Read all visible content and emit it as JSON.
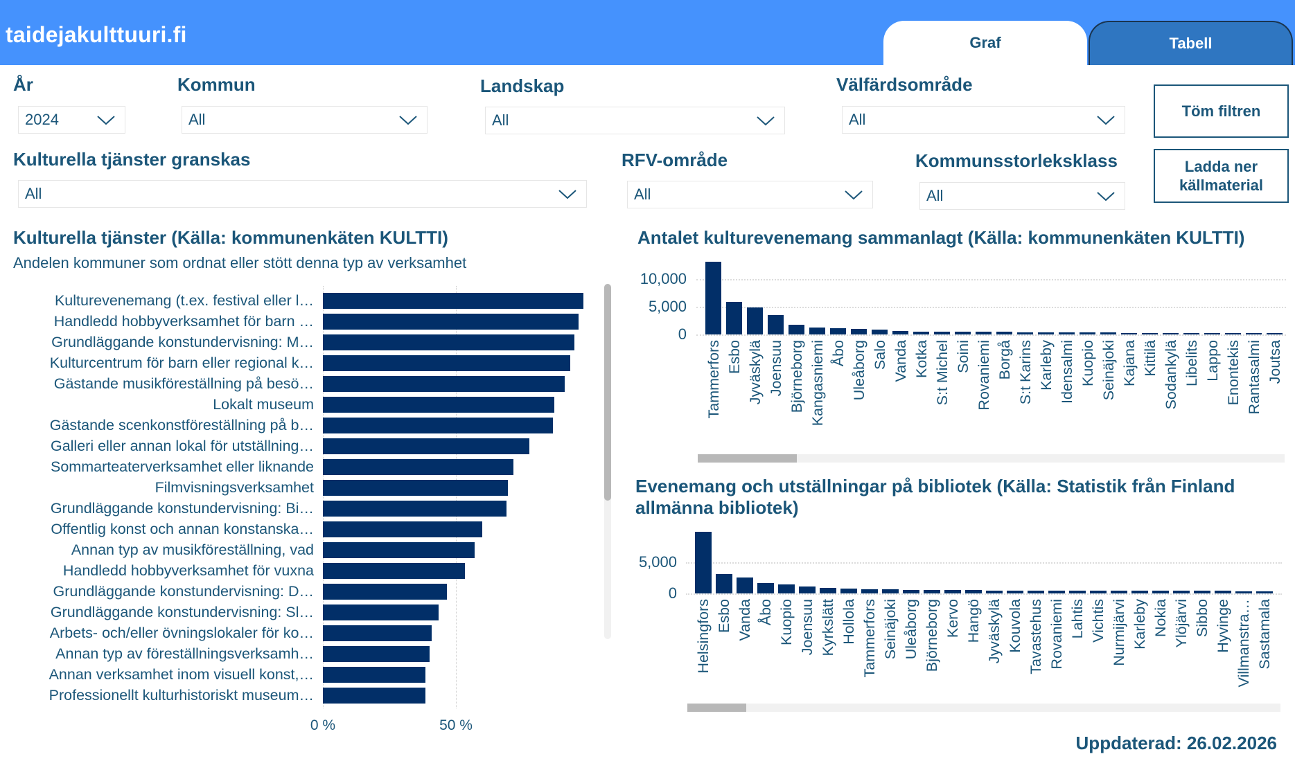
{
  "header": {
    "site_title": "taidejakulttuuri.fi",
    "tabs": [
      {
        "label": "Graf",
        "active": true
      },
      {
        "label": "Tabell",
        "active": false
      }
    ]
  },
  "filters": {
    "year": {
      "label": "År",
      "value": "2024"
    },
    "kommun": {
      "label": "Kommun",
      "value": "All"
    },
    "landskap": {
      "label": "Landskap",
      "value": "All"
    },
    "valfardsomrade": {
      "label": "Välfärdsområde",
      "value": "All"
    },
    "kulturella_tjanster": {
      "label": "Kulturella tjänster granskas",
      "value": "All"
    },
    "rfv": {
      "label": "RFV-område",
      "value": "All"
    },
    "kommunstorlek": {
      "label": "Kommunsstorleksklass",
      "value": "All"
    }
  },
  "buttons": {
    "clear_filters": "Töm filtren",
    "download_line1": "Ladda ner",
    "download_line2": "källmaterial"
  },
  "updated": "Uppdaterad: 26.02.2026",
  "colors": {
    "header": "#4592FD",
    "tab_inactive": "#2F76C1",
    "text": "#1B5679",
    "bar": "#022F68"
  },
  "chart_data": [
    {
      "type": "bar",
      "orientation": "horizontal",
      "title": "Kulturella tjänster (Källa: kommunenkäten KULTTI)",
      "subtitle": "Andelen kommuner som ordnat eller stött denna typ av verksamhet",
      "xlabel": "",
      "ylabel": "",
      "xlim": [
        0,
        100
      ],
      "x_ticks": [
        "0 %",
        "50 %"
      ],
      "x_tick_values": [
        0,
        50
      ],
      "grid": true,
      "categories": [
        "Kulturevenemang (t.ex. festival eller l…",
        "Handledd hobbyverksamhet för barn …",
        "Grundläggande konstundervisning: M…",
        "Kulturcentrum för barn eller regional k…",
        "Gästande musikföreställning på besö…",
        "Lokalt museum",
        "Gästande scenkonstföreställning på b…",
        "Galleri eller annan lokal för utställning…",
        "Sommarteaterverksamhet eller liknande",
        "Filmvisningsverksamhet",
        "Grundläggande konstundervisning: Bi…",
        "Offentlig konst och annan konstanska…",
        "Annan typ av musikföreställning, vad",
        "Handledd hobbyverksamhet för vuxna",
        "Grundläggande konstundervisning: D…",
        "Grundläggande konstundervisning: Sl…",
        "Arbets- och/eller övningslokaler för ko…",
        "Annan typ av föreställningsverksamh…",
        "Annan verksamhet inom visuell konst,…",
        "Professionellt kulturhistoriskt museum…"
      ],
      "values": [
        98,
        96,
        94.5,
        93,
        91,
        87,
        86.5,
        77.5,
        71.5,
        69.5,
        69,
        60,
        57,
        53.5,
        46.5,
        43.5,
        41,
        40,
        38.5,
        38.5
      ],
      "unit": "%"
    },
    {
      "type": "bar",
      "title": "Antalet kulturevenemang sammanlagt (Källa: kommunenkäten KULTTI)",
      "xlabel": "",
      "ylabel": "",
      "ylim": [
        0,
        13500
      ],
      "y_ticks": [
        "0",
        "5,000",
        "10,000"
      ],
      "y_tick_values": [
        0,
        5000,
        10000
      ],
      "grid": true,
      "categories": [
        "Tammerfors",
        "Esbo",
        "Jyväskylä",
        "Joensuu",
        "Björneborg",
        "Kangasniemi",
        "Åbo",
        "Uleåborg",
        "Salo",
        "Vanda",
        "Kotka",
        "S:t Michel",
        "Soini",
        "Rovaniemi",
        "Borgå",
        "S:t Karins",
        "Karleby",
        "Idensalmi",
        "Kuopio",
        "Seinäjoki",
        "Kajana",
        "Kittilä",
        "Sodankylä",
        "Libelits",
        "Lappo",
        "Enontekis",
        "Rantasalmi",
        "Joutsa"
      ],
      "values": [
        13150,
        5850,
        4900,
        3450,
        1800,
        1200,
        1120,
        980,
        890,
        600,
        560,
        520,
        480,
        470,
        460,
        430,
        420,
        390,
        380,
        320,
        300,
        260,
        240,
        230,
        220,
        210,
        200,
        190
      ],
      "scrollbar_fraction_visible": 0.17
    },
    {
      "type": "bar",
      "title": "Evenemang och utställningar på bibliotek (Källa: Statistik från Finland allmänna bibliotek)",
      "title_line1": "Evenemang och utställningar på bibliotek (Källa: Statistik från Finland",
      "title_line2": "allmänna bibliotek)",
      "xlabel": "",
      "ylabel": "",
      "ylim": [
        0,
        10000
      ],
      "y_ticks": [
        "0",
        "5,000"
      ],
      "y_tick_values": [
        0,
        5000
      ],
      "grid": true,
      "categories": [
        "Helsingfors",
        "Esbo",
        "Vanda",
        "Åbo",
        "Kuopio",
        "Joensuu",
        "Kyrkslätt",
        "Hollola",
        "Tammerfors",
        "Seinäjoki",
        "Uleåborg",
        "Björneborg",
        "Kervo",
        "Hangö",
        "Jyväskylä",
        "Kouvola",
        "Tavastehus",
        "Rovaniemi",
        "Lahtis",
        "Vichtis",
        "Nurmijärvi",
        "Karleby",
        "Nokia",
        "Ylöjärvi",
        "Sibbo",
        "Hyvinge",
        "Villmanstra…",
        "Sastamala"
      ],
      "values": [
        9890,
        3100,
        2550,
        1670,
        1440,
        1110,
        900,
        830,
        720,
        680,
        610,
        600,
        560,
        530,
        500,
        480,
        470,
        460,
        450,
        440,
        430,
        420,
        410,
        400,
        400,
        390,
        380,
        370
      ],
      "scrollbar_fraction_visible": 0.1
    }
  ]
}
